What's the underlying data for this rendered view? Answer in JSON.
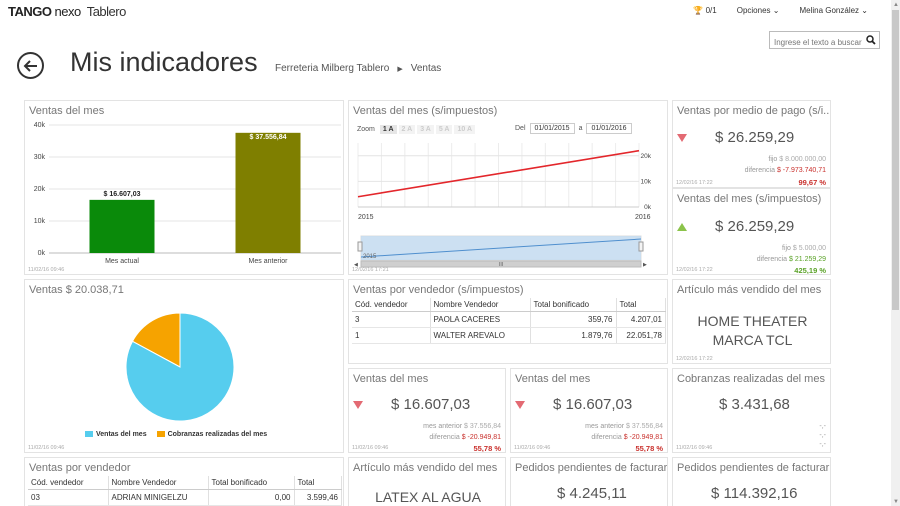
{
  "app": {
    "brand": "TANGO",
    "brand2": "nexo",
    "section": "Tablero"
  },
  "topbar": {
    "trophy": "0/1",
    "options": "Opciones",
    "user": "Melina González"
  },
  "header": {
    "title": "Mis indicadores",
    "breadcrumb": [
      "Ferreteria Milberg Tablero",
      "Ventas"
    ],
    "search_placeholder": "Ingrese el texto a buscar"
  },
  "colors": {
    "green_bar": "#0a8a0a",
    "olive_bar": "#7f7f00",
    "pie_blue": "#56cdee",
    "pie_orange": "#f6a300",
    "line_red": "#e3262b",
    "up": "#8bc34a",
    "down": "#e36a73"
  },
  "panels": {
    "ventas_mes": {
      "title": "Ventas del mes",
      "stamp": "11/02/16 09:46",
      "chart_data": {
        "type": "bar",
        "categories": [
          "Mes actual",
          "Mes anterior"
        ],
        "values": [
          16607.03,
          37556.84
        ],
        "data_labels": [
          "$ 16.607,03",
          "$ 37.556,84"
        ],
        "yticks": [
          "0k",
          "10k",
          "20k",
          "30k",
          "40k"
        ],
        "ylim": [
          0,
          40000
        ]
      }
    },
    "ventas_mes_sin_imp": {
      "title": "Ventas del mes (s/impuestos)",
      "zoom_label": "Zoom",
      "zoom_buttons": [
        "1 A",
        "2 A",
        "3 A",
        "5 A",
        "10 A"
      ],
      "from_label": "Del",
      "from_date": "01/01/2015",
      "to_label": "a",
      "to_date": "01/01/2016",
      "yticks": [
        "0k",
        "10k",
        "20k"
      ],
      "xticks": [
        "2015",
        "2016"
      ],
      "nav_xtick": "2015",
      "stamp": "12/02/16 17:21",
      "chart_data": {
        "type": "line",
        "x": [
          "2015",
          "2016"
        ],
        "series": [
          {
            "values": [
              4000,
              22000
            ]
          }
        ],
        "ylim": [
          0,
          25000
        ]
      }
    },
    "medio_pago": {
      "title": "Ventas por medio de pago (s/i...",
      "value": "$ 26.259,29",
      "fijo_label": "fijo",
      "fijo": "$ 8.000.000,00",
      "dif_label": "diferencia",
      "dif": "$ -7.973.740,71",
      "pct": "99,67 %",
      "stamp": "12/02/16 17:22"
    },
    "ventas_sin_imp2": {
      "title": "Ventas del mes (s/impuestos)",
      "value": "$ 26.259,29",
      "fijo_label": "fijo",
      "fijo": "$ 5.000,00",
      "dif_label": "diferencia",
      "dif": "$ 21.259,29",
      "pct": "425,19 %",
      "stamp": "12/02/16 17:22"
    },
    "ventas_pie": {
      "title": "Ventas $ 20.038,71",
      "stamp": "11/02/16 09:46",
      "chart_data": {
        "type": "pie",
        "categories": [
          "Ventas del mes",
          "Cobranzas realizadas del mes"
        ],
        "values": [
          16607.03,
          3431.68
        ]
      }
    },
    "ventas_vendedor_imp": {
      "title": "Ventas por vendedor (s/impuestos)",
      "columns": [
        "Cód. vendedor",
        "Nombre Vendedor",
        "Total bonificado",
        "Total"
      ],
      "rows": [
        [
          "3",
          "PAOLA CACERES",
          "359,76",
          "4.207,01"
        ],
        [
          "1",
          "WALTER AREVALO",
          "1.879,76",
          "22.051,78"
        ]
      ]
    },
    "articulo_top": {
      "title": "Artículo más vendido del mes",
      "value": "HOME THEATER MARCA TCL",
      "stamp": "12/02/16 17:22"
    },
    "ventas_mes_a": {
      "title": "Ventas del mes",
      "value": "$ 16.607,03",
      "prev_label": "mes anterior",
      "prev": "$ 37.556,84",
      "dif_label": "diferencia",
      "dif": "$ -20.949,81",
      "pct": "55,78 %",
      "stamp": "11/02/16 09:46"
    },
    "ventas_mes_b": {
      "title": "Ventas del mes",
      "value": "$ 16.607,03",
      "prev_label": "mes anterior",
      "prev": "$ 37.556,84",
      "dif_label": "diferencia",
      "dif": "$ -20.949,81",
      "pct": "55,78 %",
      "stamp": "11/02/16 09:46"
    },
    "cobranzas": {
      "title": "Cobranzas realizadas del mes",
      "value": "$ 3.431,68",
      "dash1": "-,-",
      "dash2": "-,-",
      "dash3": "-,-",
      "stamp": "11/02/16 09:46"
    },
    "ventas_vendedor": {
      "title": "Ventas por vendedor",
      "columns": [
        "Cód. vendedor",
        "Nombre Vendedor",
        "Total bonificado",
        "Total"
      ],
      "rows": [
        [
          "03",
          "ADRIAN MINIGELZU",
          "0,00",
          "3.599,46"
        ]
      ]
    },
    "articulo_top2": {
      "title": "Artículo más vendido del mes",
      "value": "LATEX AL AGUA"
    },
    "pedidos1": {
      "title": "Pedidos pendientes de facturar",
      "value": "$ 4.245,11"
    },
    "pedidos2": {
      "title": "Pedidos pendientes de facturar",
      "value": "$ 114.392,16"
    }
  }
}
